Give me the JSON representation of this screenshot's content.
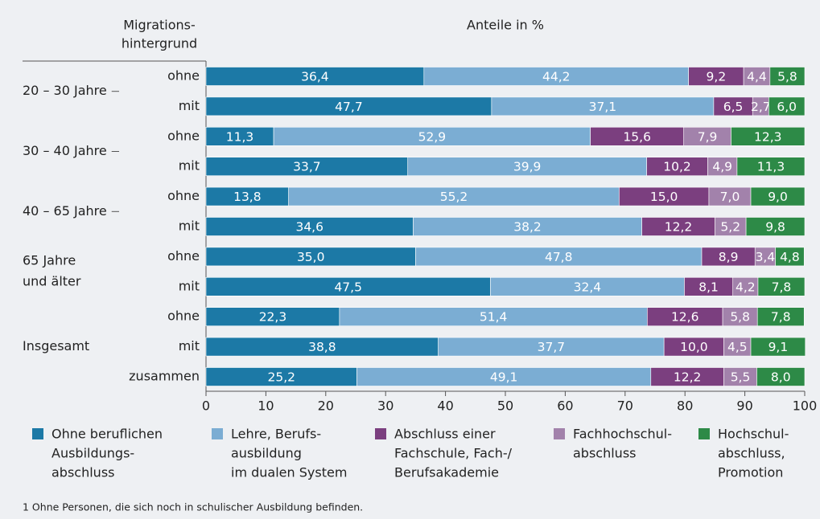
{
  "chart_data": {
    "type": "stacked-bar-horizontal",
    "title": "Anteile in %",
    "row_header": [
      "Migrations-",
      "hintergrund"
    ],
    "footnote": "1 Ohne Personen, die sich noch in schulischer Ausbildung befinden.",
    "groups": [
      {
        "name": [
          "20 – 30 Jahre"
        ],
        "categories": [
          "ohne",
          "mit"
        ]
      },
      {
        "name": [
          "30 – 40 Jahre"
        ],
        "categories": [
          "ohne",
          "mit"
        ]
      },
      {
        "name": [
          "40 – 65 Jahre"
        ],
        "categories": [
          "ohne",
          "mit"
        ]
      },
      {
        "name": [
          "65 Jahre",
          "und älter"
        ],
        "categories": [
          "ohne",
          "mit"
        ]
      },
      {
        "name": [
          "Insgesamt"
        ],
        "categories": [
          "ohne",
          "mit",
          "zusammen"
        ]
      }
    ],
    "series": [
      {
        "name": [
          "Ohne beruflichen",
          "Ausbildungs-",
          "abschluss"
        ],
        "color": "#1c79a6",
        "values": [
          36.4,
          47.7,
          11.3,
          33.7,
          13.8,
          34.6,
          35.0,
          47.5,
          22.3,
          38.8,
          25.2
        ],
        "value_labels": [
          "36,4",
          "47,7",
          "11,3",
          "33,7",
          "13,8",
          "34,6",
          "35,0",
          "47,5",
          "22,3",
          "38,8",
          "25,2"
        ]
      },
      {
        "name": [
          "Lehre, Berufs-",
          "ausbildung",
          "im dualen System"
        ],
        "color": "#7badd3",
        "values": [
          44.2,
          37.1,
          52.9,
          39.9,
          55.2,
          38.2,
          47.8,
          32.4,
          51.4,
          37.7,
          49.1
        ],
        "value_labels": [
          "44,2",
          "37,1",
          "52,9",
          "39,9",
          "55,2",
          "38,2",
          "47,8",
          "32,4",
          "51,4",
          "37,7",
          "49,1"
        ]
      },
      {
        "name": [
          "Abschluss einer",
          "Fachschule, Fach-/",
          "Berufsakademie"
        ],
        "color": "#7b3f7f",
        "values": [
          9.2,
          6.5,
          15.6,
          10.2,
          15.0,
          12.2,
          8.9,
          8.1,
          12.6,
          10.0,
          12.2
        ],
        "value_labels": [
          "9,2",
          "6,5",
          "15,6",
          "10,2",
          "15,0",
          "12,2",
          "8,9",
          "8,1",
          "12,6",
          "10,0",
          "12,2"
        ]
      },
      {
        "name": [
          "Fachhochschul-",
          "abschluss"
        ],
        "color": "#a282ab",
        "values": [
          4.4,
          2.7,
          7.9,
          4.9,
          7.0,
          5.2,
          3.4,
          4.2,
          5.8,
          4.5,
          5.5
        ],
        "value_labels": [
          "4,4",
          "2,7",
          "7,9",
          "4,9",
          "7,0",
          "5,2",
          "3,4",
          "4,2",
          "5,8",
          "4,5",
          "5,5"
        ]
      },
      {
        "name": [
          "Hochschul-",
          "abschluss,",
          "Promotion"
        ],
        "color": "#2d8a47",
        "values": [
          5.8,
          6.0,
          12.3,
          11.3,
          9.0,
          9.8,
          4.8,
          7.8,
          7.8,
          9.1,
          8.0
        ],
        "value_labels": [
          "5,8",
          "6,0",
          "12,3",
          "11,3",
          "9,0",
          "9,8",
          "4,8",
          "7,8",
          "7,8",
          "9,1",
          "8,0"
        ]
      }
    ],
    "xlim": [
      0,
      100
    ],
    "xticks": [
      0,
      10,
      20,
      30,
      40,
      50,
      60,
      70,
      80,
      90,
      100
    ]
  }
}
